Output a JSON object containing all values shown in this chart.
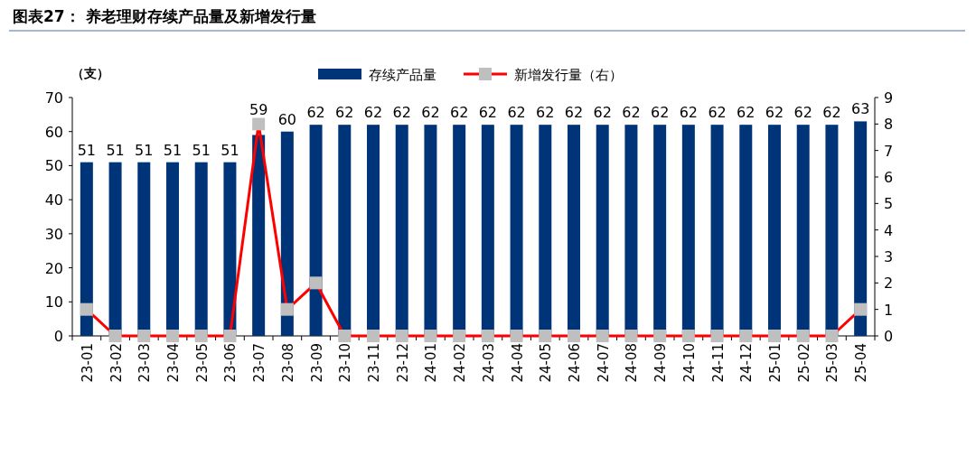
{
  "chart_data": {
    "type": "bar",
    "title": "图表27： 养老理财存续产品量及新增发行量",
    "ylabel": "（支）",
    "categories": [
      "23-01",
      "23-02",
      "23-03",
      "23-04",
      "23-05",
      "23-06",
      "23-07",
      "23-08",
      "23-09",
      "23-10",
      "23-11",
      "23-12",
      "24-01",
      "24-02",
      "24-03",
      "24-04",
      "24-05",
      "24-06",
      "24-07",
      "24-08",
      "24-09",
      "24-10",
      "24-11",
      "24-12",
      "25-01",
      "25-02",
      "25-03",
      "25-04"
    ],
    "series": [
      {
        "name": "存续产品量",
        "color": "#003478",
        "values": [
          51,
          51,
          51,
          51,
          51,
          51,
          59,
          60,
          62,
          62,
          62,
          62,
          62,
          62,
          62,
          62,
          62,
          62,
          62,
          62,
          62,
          62,
          62,
          62,
          62,
          62,
          62,
          63
        ],
        "value_labels": [
          "51",
          "51",
          "51",
          "51",
          "51",
          "51",
          "59",
          "60",
          "62",
          "62",
          "62",
          "62",
          "62",
          "62",
          "62",
          "62",
          "62",
          "62",
          "62",
          "62",
          "62",
          "62",
          "62",
          "62",
          "62",
          "62",
          "62",
          "63"
        ]
      },
      {
        "name": "新增发行量（右）",
        "type": "line",
        "axis": "y2",
        "color": "#ff0000",
        "marker": "square",
        "values": [
          1,
          0,
          0,
          0,
          0,
          0,
          8,
          1,
          2,
          0,
          0,
          0,
          0,
          0,
          0,
          0,
          0,
          0,
          0,
          0,
          0,
          0,
          0,
          0,
          0,
          0,
          0,
          1
        ]
      }
    ],
    "ylim": [
      0,
      70
    ],
    "yticks": [
      0,
      10,
      20,
      30,
      40,
      50,
      60,
      70
    ],
    "y2lim": [
      0,
      9
    ],
    "y2ticks": [
      0,
      1,
      2,
      3,
      4,
      5,
      6,
      7,
      8,
      9
    ],
    "legend": "top",
    "grid": false
  }
}
